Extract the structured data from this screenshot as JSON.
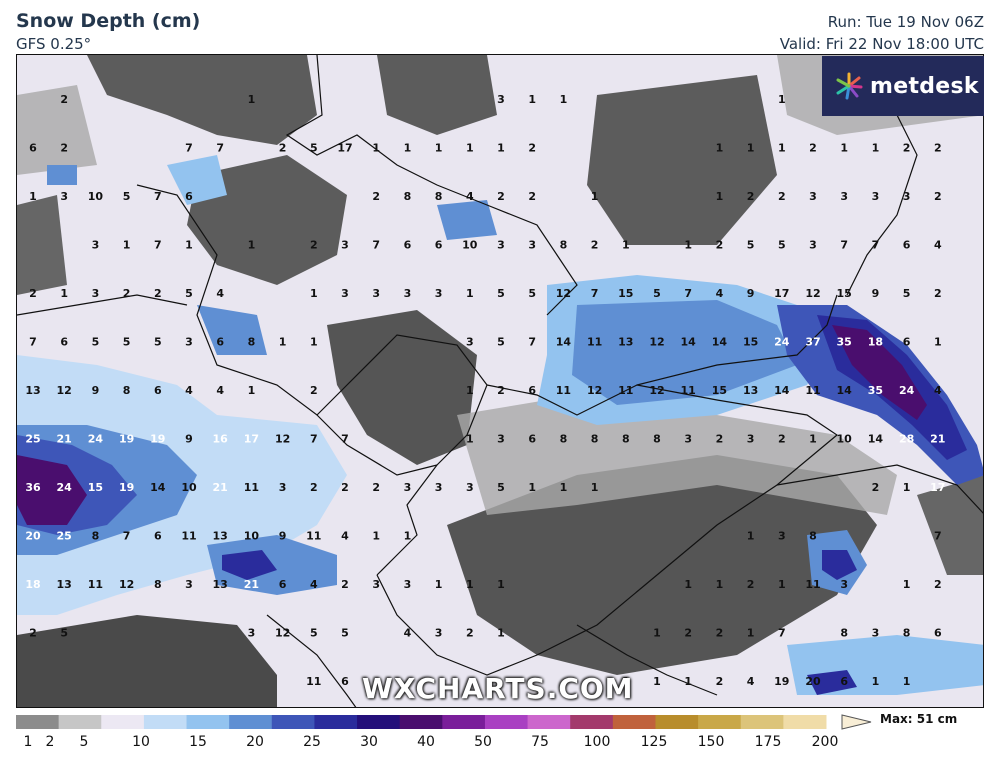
{
  "header": {
    "title": "Snow Depth (cm)",
    "model": "GFS 0.25°",
    "run": "Run: Tue 19 Nov 06Z",
    "valid": "Valid: Fri 22 Nov 18:00 UTC"
  },
  "brand": {
    "logo_text": "metdesk",
    "watermark": "WXCHARTS.COM"
  },
  "legend": {
    "max_label": "Max: 51 cm",
    "ticks": [
      "1",
      "2",
      "5",
      "10",
      "15",
      "20",
      "25",
      "30",
      "40",
      "50",
      "75",
      "100",
      "125",
      "150",
      "175",
      "200"
    ],
    "colors": [
      "#8c8c8c",
      "#c6c6c6",
      "#ece8f3",
      "#c2dcf6",
      "#93c3ef",
      "#5f8fd3",
      "#3e56b8",
      "#2a2c9c",
      "#230f7a",
      "#4a0e6e",
      "#7a1e9a",
      "#a940c2",
      "#cc66cc",
      "#a33a6c",
      "#c0623c",
      "#b88d2c",
      "#c9a848",
      "#dcc47a",
      "#f0dca8"
    ]
  },
  "values": [
    {
      "v": "2",
      "c": 2,
      "r": 1
    },
    {
      "v": "1",
      "c": 8,
      "r": 1
    },
    {
      "v": "3",
      "c": 16,
      "r": 1
    },
    {
      "v": "1",
      "c": 17,
      "r": 1
    },
    {
      "v": "1",
      "c": 18,
      "r": 1
    },
    {
      "v": "1",
      "c": 25,
      "r": 1
    },
    {
      "v": "6",
      "c": 1,
      "r": 2
    },
    {
      "v": "2",
      "c": 2,
      "r": 2
    },
    {
      "v": "7",
      "c": 6,
      "r": 2
    },
    {
      "v": "7",
      "c": 7,
      "r": 2
    },
    {
      "v": "2",
      "c": 9,
      "r": 2
    },
    {
      "v": "5",
      "c": 10,
      "r": 2
    },
    {
      "v": "17",
      "c": 11,
      "r": 2
    },
    {
      "v": "1",
      "c": 12,
      "r": 2
    },
    {
      "v": "1",
      "c": 13,
      "r": 2
    },
    {
      "v": "1",
      "c": 14,
      "r": 2
    },
    {
      "v": "1",
      "c": 15,
      "r": 2
    },
    {
      "v": "1",
      "c": 16,
      "r": 2
    },
    {
      "v": "2",
      "c": 17,
      "r": 2
    },
    {
      "v": "1",
      "c": 23,
      "r": 2
    },
    {
      "v": "1",
      "c": 24,
      "r": 2
    },
    {
      "v": "1",
      "c": 25,
      "r": 2
    },
    {
      "v": "2",
      "c": 26,
      "r": 2
    },
    {
      "v": "1",
      "c": 27,
      "r": 2
    },
    {
      "v": "1",
      "c": 28,
      "r": 2
    },
    {
      "v": "2",
      "c": 29,
      "r": 2
    },
    {
      "v": "2",
      "c": 30,
      "r": 2
    },
    {
      "v": "1",
      "c": 1,
      "r": 3
    },
    {
      "v": "3",
      "c": 2,
      "r": 3
    },
    {
      "v": "10",
      "c": 3,
      "r": 3
    },
    {
      "v": "5",
      "c": 4,
      "r": 3
    },
    {
      "v": "7",
      "c": 5,
      "r": 3
    },
    {
      "v": "6",
      "c": 6,
      "r": 3
    },
    {
      "v": "2",
      "c": 12,
      "r": 3
    },
    {
      "v": "8",
      "c": 13,
      "r": 3
    },
    {
      "v": "8",
      "c": 14,
      "r": 3
    },
    {
      "v": "4",
      "c": 15,
      "r": 3
    },
    {
      "v": "2",
      "c": 16,
      "r": 3
    },
    {
      "v": "2",
      "c": 17,
      "r": 3
    },
    {
      "v": "1",
      "c": 19,
      "r": 3
    },
    {
      "v": "1",
      "c": 23,
      "r": 3
    },
    {
      "v": "2",
      "c": 24,
      "r": 3
    },
    {
      "v": "2",
      "c": 25,
      "r": 3
    },
    {
      "v": "3",
      "c": 26,
      "r": 3
    },
    {
      "v": "3",
      "c": 27,
      "r": 3
    },
    {
      "v": "3",
      "c": 28,
      "r": 3
    },
    {
      "v": "3",
      "c": 29,
      "r": 3
    },
    {
      "v": "2",
      "c": 30,
      "r": 3
    },
    {
      "v": "3",
      "c": 3,
      "r": 4
    },
    {
      "v": "1",
      "c": 4,
      "r": 4
    },
    {
      "v": "7",
      "c": 5,
      "r": 4
    },
    {
      "v": "1",
      "c": 6,
      "r": 4
    },
    {
      "v": "1",
      "c": 8,
      "r": 4
    },
    {
      "v": "2",
      "c": 10,
      "r": 4
    },
    {
      "v": "3",
      "c": 11,
      "r": 4
    },
    {
      "v": "7",
      "c": 12,
      "r": 4
    },
    {
      "v": "6",
      "c": 13,
      "r": 4
    },
    {
      "v": "6",
      "c": 14,
      "r": 4
    },
    {
      "v": "10",
      "c": 15,
      "r": 4
    },
    {
      "v": "3",
      "c": 16,
      "r": 4
    },
    {
      "v": "3",
      "c": 17,
      "r": 4
    },
    {
      "v": "8",
      "c": 18,
      "r": 4
    },
    {
      "v": "2",
      "c": 19,
      "r": 4
    },
    {
      "v": "1",
      "c": 20,
      "r": 4
    },
    {
      "v": "1",
      "c": 22,
      "r": 4
    },
    {
      "v": "2",
      "c": 23,
      "r": 4
    },
    {
      "v": "5",
      "c": 24,
      "r": 4
    },
    {
      "v": "5",
      "c": 25,
      "r": 4
    },
    {
      "v": "3",
      "c": 26,
      "r": 4
    },
    {
      "v": "7",
      "c": 27,
      "r": 4
    },
    {
      "v": "7",
      "c": 28,
      "r": 4
    },
    {
      "v": "6",
      "c": 29,
      "r": 4
    },
    {
      "v": "4",
      "c": 30,
      "r": 4
    },
    {
      "v": "2",
      "c": 1,
      "r": 5
    },
    {
      "v": "1",
      "c": 2,
      "r": 5
    },
    {
      "v": "3",
      "c": 3,
      "r": 5
    },
    {
      "v": "2",
      "c": 4,
      "r": 5
    },
    {
      "v": "2",
      "c": 5,
      "r": 5
    },
    {
      "v": "5",
      "c": 6,
      "r": 5
    },
    {
      "v": "4",
      "c": 7,
      "r": 5
    },
    {
      "v": "1",
      "c": 10,
      "r": 5
    },
    {
      "v": "3",
      "c": 11,
      "r": 5
    },
    {
      "v": "3",
      "c": 12,
      "r": 5
    },
    {
      "v": "3",
      "c": 13,
      "r": 5
    },
    {
      "v": "3",
      "c": 14,
      "r": 5
    },
    {
      "v": "1",
      "c": 15,
      "r": 5
    },
    {
      "v": "5",
      "c": 16,
      "r": 5
    },
    {
      "v": "5",
      "c": 17,
      "r": 5
    },
    {
      "v": "12",
      "c": 18,
      "r": 5
    },
    {
      "v": "7",
      "c": 19,
      "r": 5
    },
    {
      "v": "15",
      "c": 20,
      "r": 5
    },
    {
      "v": "5",
      "c": 21,
      "r": 5
    },
    {
      "v": "7",
      "c": 22,
      "r": 5
    },
    {
      "v": "4",
      "c": 23,
      "r": 5
    },
    {
      "v": "9",
      "c": 24,
      "r": 5
    },
    {
      "v": "17",
      "c": 25,
      "r": 5
    },
    {
      "v": "12",
      "c": 26,
      "r": 5
    },
    {
      "v": "15",
      "c": 27,
      "r": 5
    },
    {
      "v": "9",
      "c": 28,
      "r": 5
    },
    {
      "v": "5",
      "c": 29,
      "r": 5
    },
    {
      "v": "2",
      "c": 30,
      "r": 5
    },
    {
      "v": "7",
      "c": 1,
      "r": 6
    },
    {
      "v": "6",
      "c": 2,
      "r": 6
    },
    {
      "v": "5",
      "c": 3,
      "r": 6
    },
    {
      "v": "5",
      "c": 4,
      "r": 6
    },
    {
      "v": "5",
      "c": 5,
      "r": 6
    },
    {
      "v": "3",
      "c": 6,
      "r": 6
    },
    {
      "v": "6",
      "c": 7,
      "r": 6
    },
    {
      "v": "8",
      "c": 8,
      "r": 6
    },
    {
      "v": "1",
      "c": 9,
      "r": 6
    },
    {
      "v": "1",
      "c": 10,
      "r": 6
    },
    {
      "v": "3",
      "c": 15,
      "r": 6
    },
    {
      "v": "5",
      "c": 16,
      "r": 6
    },
    {
      "v": "7",
      "c": 17,
      "r": 6
    },
    {
      "v": "14",
      "c": 18,
      "r": 6
    },
    {
      "v": "11",
      "c": 19,
      "r": 6
    },
    {
      "v": "13",
      "c": 20,
      "r": 6
    },
    {
      "v": "12",
      "c": 21,
      "r": 6
    },
    {
      "v": "14",
      "c": 22,
      "r": 6
    },
    {
      "v": "14",
      "c": 23,
      "r": 6
    },
    {
      "v": "15",
      "c": 24,
      "r": 6
    },
    {
      "v": "24",
      "c": 25,
      "r": 6
    },
    {
      "v": "37",
      "c": 26,
      "r": 6
    },
    {
      "v": "35",
      "c": 27,
      "r": 6
    },
    {
      "v": "18",
      "c": 28,
      "r": 6
    },
    {
      "v": "6",
      "c": 29,
      "r": 6
    },
    {
      "v": "1",
      "c": 30,
      "r": 6
    },
    {
      "v": "13",
      "c": 1,
      "r": 7
    },
    {
      "v": "12",
      "c": 2,
      "r": 7
    },
    {
      "v": "9",
      "c": 3,
      "r": 7
    },
    {
      "v": "8",
      "c": 4,
      "r": 7
    },
    {
      "v": "6",
      "c": 5,
      "r": 7
    },
    {
      "v": "4",
      "c": 6,
      "r": 7
    },
    {
      "v": "4",
      "c": 7,
      "r": 7
    },
    {
      "v": "1",
      "c": 8,
      "r": 7
    },
    {
      "v": "2",
      "c": 10,
      "r": 7
    },
    {
      "v": "1",
      "c": 15,
      "r": 7
    },
    {
      "v": "2",
      "c": 16,
      "r": 7
    },
    {
      "v": "6",
      "c": 17,
      "r": 7
    },
    {
      "v": "11",
      "c": 18,
      "r": 7
    },
    {
      "v": "12",
      "c": 19,
      "r": 7
    },
    {
      "v": "11",
      "c": 20,
      "r": 7
    },
    {
      "v": "12",
      "c": 21,
      "r": 7
    },
    {
      "v": "11",
      "c": 22,
      "r": 7
    },
    {
      "v": "15",
      "c": 23,
      "r": 7
    },
    {
      "v": "13",
      "c": 24,
      "r": 7
    },
    {
      "v": "14",
      "c": 25,
      "r": 7
    },
    {
      "v": "11",
      "c": 26,
      "r": 7
    },
    {
      "v": "14",
      "c": 27,
      "r": 7
    },
    {
      "v": "35",
      "c": 28,
      "r": 7
    },
    {
      "v": "24",
      "c": 29,
      "r": 7
    },
    {
      "v": "4",
      "c": 30,
      "r": 7
    },
    {
      "v": "25",
      "c": 1,
      "r": 8
    },
    {
      "v": "21",
      "c": 2,
      "r": 8
    },
    {
      "v": "24",
      "c": 3,
      "r": 8
    },
    {
      "v": "19",
      "c": 4,
      "r": 8
    },
    {
      "v": "19",
      "c": 5,
      "r": 8
    },
    {
      "v": "9",
      "c": 6,
      "r": 8
    },
    {
      "v": "16",
      "c": 7,
      "r": 8
    },
    {
      "v": "17",
      "c": 8,
      "r": 8
    },
    {
      "v": "12",
      "c": 9,
      "r": 8
    },
    {
      "v": "7",
      "c": 10,
      "r": 8
    },
    {
      "v": "7",
      "c": 11,
      "r": 8
    },
    {
      "v": "1",
      "c": 15,
      "r": 8
    },
    {
      "v": "3",
      "c": 16,
      "r": 8
    },
    {
      "v": "6",
      "c": 17,
      "r": 8
    },
    {
      "v": "8",
      "c": 18,
      "r": 8
    },
    {
      "v": "8",
      "c": 19,
      "r": 8
    },
    {
      "v": "8",
      "c": 20,
      "r": 8
    },
    {
      "v": "8",
      "c": 21,
      "r": 8
    },
    {
      "v": "3",
      "c": 22,
      "r": 8
    },
    {
      "v": "2",
      "c": 23,
      "r": 8
    },
    {
      "v": "3",
      "c": 24,
      "r": 8
    },
    {
      "v": "2",
      "c": 25,
      "r": 8
    },
    {
      "v": "1",
      "c": 26,
      "r": 8
    },
    {
      "v": "10",
      "c": 27,
      "r": 8
    },
    {
      "v": "14",
      "c": 28,
      "r": 8
    },
    {
      "v": "28",
      "c": 29,
      "r": 8
    },
    {
      "v": "21",
      "c": 30,
      "r": 8
    },
    {
      "v": "36",
      "c": 1,
      "r": 9
    },
    {
      "v": "24",
      "c": 2,
      "r": 9
    },
    {
      "v": "15",
      "c": 3,
      "r": 9
    },
    {
      "v": "19",
      "c": 4,
      "r": 9
    },
    {
      "v": "14",
      "c": 5,
      "r": 9
    },
    {
      "v": "10",
      "c": 6,
      "r": 9
    },
    {
      "v": "21",
      "c": 7,
      "r": 9
    },
    {
      "v": "11",
      "c": 8,
      "r": 9
    },
    {
      "v": "3",
      "c": 9,
      "r": 9
    },
    {
      "v": "2",
      "c": 10,
      "r": 9
    },
    {
      "v": "2",
      "c": 11,
      "r": 9
    },
    {
      "v": "2",
      "c": 12,
      "r": 9
    },
    {
      "v": "3",
      "c": 13,
      "r": 9
    },
    {
      "v": "3",
      "c": 14,
      "r": 9
    },
    {
      "v": "3",
      "c": 15,
      "r": 9
    },
    {
      "v": "5",
      "c": 16,
      "r": 9
    },
    {
      "v": "1",
      "c": 17,
      "r": 9
    },
    {
      "v": "1",
      "c": 18,
      "r": 9
    },
    {
      "v": "1",
      "c": 19,
      "r": 9
    },
    {
      "v": "2",
      "c": 28,
      "r": 9
    },
    {
      "v": "1",
      "c": 29,
      "r": 9
    },
    {
      "v": "17",
      "c": 30,
      "r": 9
    },
    {
      "v": "20",
      "c": 1,
      "r": 10
    },
    {
      "v": "25",
      "c": 2,
      "r": 10
    },
    {
      "v": "8",
      "c": 3,
      "r": 10
    },
    {
      "v": "7",
      "c": 4,
      "r": 10
    },
    {
      "v": "6",
      "c": 5,
      "r": 10
    },
    {
      "v": "11",
      "c": 6,
      "r": 10
    },
    {
      "v": "13",
      "c": 7,
      "r": 10
    },
    {
      "v": "10",
      "c": 8,
      "r": 10
    },
    {
      "v": "9",
      "c": 9,
      "r": 10
    },
    {
      "v": "11",
      "c": 10,
      "r": 10
    },
    {
      "v": "4",
      "c": 11,
      "r": 10
    },
    {
      "v": "1",
      "c": 12,
      "r": 10
    },
    {
      "v": "1",
      "c": 13,
      "r": 10
    },
    {
      "v": "1",
      "c": 24,
      "r": 10
    },
    {
      "v": "3",
      "c": 25,
      "r": 10
    },
    {
      "v": "8",
      "c": 26,
      "r": 10
    },
    {
      "v": "7",
      "c": 30,
      "r": 10
    },
    {
      "v": "18",
      "c": 1,
      "r": 11
    },
    {
      "v": "13",
      "c": 2,
      "r": 11
    },
    {
      "v": "11",
      "c": 3,
      "r": 11
    },
    {
      "v": "12",
      "c": 4,
      "r": 11
    },
    {
      "v": "8",
      "c": 5,
      "r": 11
    },
    {
      "v": "3",
      "c": 6,
      "r": 11
    },
    {
      "v": "13",
      "c": 7,
      "r": 11
    },
    {
      "v": "21",
      "c": 8,
      "r": 11
    },
    {
      "v": "6",
      "c": 9,
      "r": 11
    },
    {
      "v": "4",
      "c": 10,
      "r": 11
    },
    {
      "v": "2",
      "c": 11,
      "r": 11
    },
    {
      "v": "3",
      "c": 12,
      "r": 11
    },
    {
      "v": "3",
      "c": 13,
      "r": 11
    },
    {
      "v": "1",
      "c": 14,
      "r": 11
    },
    {
      "v": "1",
      "c": 15,
      "r": 11
    },
    {
      "v": "1",
      "c": 16,
      "r": 11
    },
    {
      "v": "1",
      "c": 22,
      "r": 11
    },
    {
      "v": "1",
      "c": 23,
      "r": 11
    },
    {
      "v": "2",
      "c": 24,
      "r": 11
    },
    {
      "v": "1",
      "c": 25,
      "r": 11
    },
    {
      "v": "11",
      "c": 26,
      "r": 11
    },
    {
      "v": "3",
      "c": 27,
      "r": 11
    },
    {
      "v": "1",
      "c": 29,
      "r": 11
    },
    {
      "v": "2",
      "c": 30,
      "r": 11
    },
    {
      "v": "2",
      "c": 1,
      "r": 12
    },
    {
      "v": "5",
      "c": 2,
      "r": 12
    },
    {
      "v": "3",
      "c": 8,
      "r": 12
    },
    {
      "v": "12",
      "c": 9,
      "r": 12
    },
    {
      "v": "5",
      "c": 10,
      "r": 12
    },
    {
      "v": "5",
      "c": 11,
      "r": 12
    },
    {
      "v": "4",
      "c": 13,
      "r": 12
    },
    {
      "v": "3",
      "c": 14,
      "r": 12
    },
    {
      "v": "2",
      "c": 15,
      "r": 12
    },
    {
      "v": "1",
      "c": 16,
      "r": 12
    },
    {
      "v": "1",
      "c": 21,
      "r": 12
    },
    {
      "v": "2",
      "c": 22,
      "r": 12
    },
    {
      "v": "2",
      "c": 23,
      "r": 12
    },
    {
      "v": "1",
      "c": 24,
      "r": 12
    },
    {
      "v": "7",
      "c": 25,
      "r": 12
    },
    {
      "v": "8",
      "c": 27,
      "r": 12
    },
    {
      "v": "3",
      "c": 28,
      "r": 12
    },
    {
      "v": "8",
      "c": 29,
      "r": 12
    },
    {
      "v": "6",
      "c": 30,
      "r": 12
    },
    {
      "v": "11",
      "c": 10,
      "r": 13
    },
    {
      "v": "6",
      "c": 11,
      "r": 13
    },
    {
      "v": "1",
      "c": 20,
      "r": 13
    },
    {
      "v": "1",
      "c": 21,
      "r": 13
    },
    {
      "v": "1",
      "c": 22,
      "r": 13
    },
    {
      "v": "2",
      "c": 23,
      "r": 13
    },
    {
      "v": "4",
      "c": 24,
      "r": 13
    },
    {
      "v": "19",
      "c": 25,
      "r": 13
    },
    {
      "v": "20",
      "c": 26,
      "r": 13
    },
    {
      "v": "6",
      "c": 27,
      "r": 13
    },
    {
      "v": "1",
      "c": 28,
      "r": 13
    },
    {
      "v": "1",
      "c": 29,
      "r": 13
    }
  ]
}
